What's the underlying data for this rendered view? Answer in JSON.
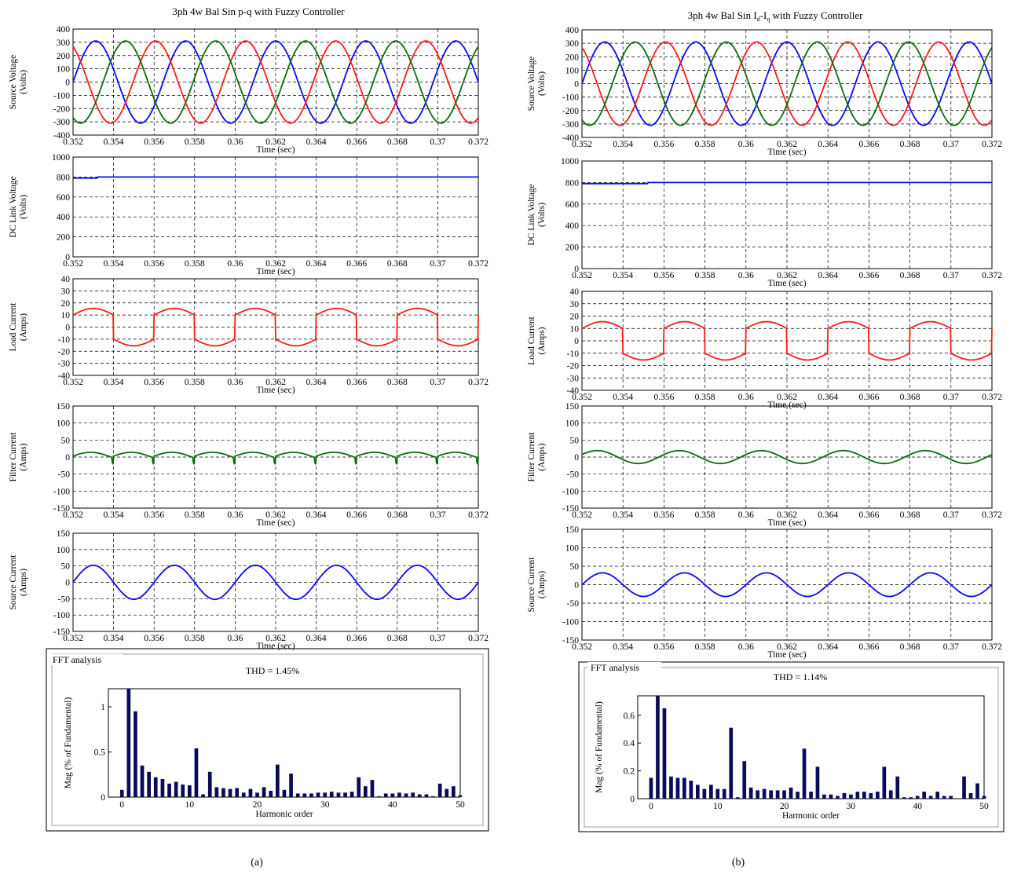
{
  "captions": [
    "(a)",
    "(b)"
  ],
  "colors": {
    "blue": "#0a0aff",
    "red": "#ff1a1a",
    "green": "#0f6a0f",
    "bar": "#0a0a5a",
    "frame": "#000000"
  },
  "panels": [
    {
      "id": "a",
      "title": "3ph 4w Bal Sin p-q with Fuzzy Controller",
      "title_main": "3ph 4w Bal Sin p-q with Fuzzy Controller",
      "title_subs": [],
      "fft": {
        "box_label": "FFT analysis",
        "thd": "THD = 1.45%"
      }
    },
    {
      "id": "b",
      "title": "3ph 4w Bal Sin Id-Iq with Fuzzy Controller",
      "title_main": "3ph 4w Bal Sin I",
      "title_subs": [
        "d",
        "-I",
        "q",
        " with Fuzzy Controller"
      ],
      "fft": {
        "box_label": "FFT analysis",
        "thd": "THD = 1.14%"
      }
    }
  ],
  "chart_data": [
    {
      "type": "line",
      "panel": "a",
      "plot": "source-voltage",
      "xlabel": "Time (sec)",
      "ylabel": [
        "Source Voltage",
        "(Volts)"
      ],
      "xlim": [
        0.352,
        0.372
      ],
      "ylim": [
        -400,
        400
      ],
      "grid": true,
      "xticks": [
        "0.352",
        "0.354",
        "0.356",
        "0.358",
        "0.36",
        "0.362",
        "0.364",
        "0.366",
        "0.368",
        "0.37",
        "0.372"
      ],
      "yticks": [
        "400",
        "300",
        "200",
        "100",
        "0",
        "-100",
        "-200",
        "-300",
        "-400"
      ],
      "signal": {
        "kind": "three_phase_sine",
        "amplitude": 310,
        "frequency_hz": 50,
        "x0": 0.352,
        "phases_deg": [
          0,
          120,
          -120
        ],
        "colors": [
          "blue",
          "red",
          "green"
        ]
      }
    },
    {
      "type": "line",
      "panel": "a",
      "plot": "dc-link-voltage",
      "xlabel": "Time (sec)",
      "ylabel": [
        "DC Link Voltage",
        "(Volts)"
      ],
      "xlim": [
        0.352,
        0.372
      ],
      "ylim": [
        0,
        1000
      ],
      "grid": true,
      "xticks": [
        "0.352",
        "0.354",
        "0.356",
        "0.358",
        "0.36",
        "0.362",
        "0.364",
        "0.366",
        "0.368",
        "0.37",
        "0.372"
      ],
      "yticks": [
        "1000",
        "800",
        "600",
        "400",
        "200",
        "0"
      ],
      "signal": {
        "kind": "dc",
        "steady_value": 800,
        "initial_value": 790,
        "settle_time": 0.3532,
        "colors": [
          "blue"
        ]
      }
    },
    {
      "type": "line",
      "panel": "a",
      "plot": "load-current",
      "xlabel": "Time (sec)",
      "ylabel": [
        "Load Current",
        "(Amps)"
      ],
      "xlim": [
        0.352,
        0.372
      ],
      "ylim": [
        -40,
        40
      ],
      "grid": true,
      "xticks": [
        "0.352",
        "0.354",
        "0.356",
        "0.358",
        "0.36",
        "0.362",
        "0.364",
        "0.366",
        "0.368",
        "0.37",
        "0.372"
      ],
      "yticks": [
        "40",
        "30",
        "20",
        "10",
        "0",
        "-10",
        "-20",
        "-30",
        "-40"
      ],
      "signal": {
        "kind": "rectifier_load",
        "base": 10,
        "hump": 5.5,
        "frequency_hz": 50,
        "phase_deg": 0,
        "colors": [
          "red"
        ]
      }
    },
    {
      "type": "line",
      "panel": "a",
      "plot": "filter-current",
      "xlabel": "Time (sec)",
      "ylabel": [
        "Filter Current",
        "(Amps)"
      ],
      "xlim": [
        0.352,
        0.372
      ],
      "ylim": [
        -150,
        150
      ],
      "grid": true,
      "xticks": [
        "0.352",
        "0.354",
        "0.356",
        "0.358",
        "0.36",
        "0.362",
        "0.364",
        "0.366",
        "0.368",
        "0.37",
        "0.372"
      ],
      "yticks": [
        "150",
        "100",
        "50",
        "0",
        "-50",
        "-100",
        "-150"
      ],
      "signal": {
        "kind": "filter_spiky",
        "amplitude": 14,
        "spike": 24,
        "frequency_hz": 50,
        "colors": [
          "green"
        ]
      }
    },
    {
      "type": "line",
      "panel": "a",
      "plot": "source-current",
      "xlabel": "Time (sec)",
      "ylabel": [
        "Source Current",
        "(Amps)"
      ],
      "xlim": [
        0.352,
        0.372
      ],
      "ylim": [
        -150,
        150
      ],
      "grid": true,
      "xticks": [
        "0.352",
        "0.354",
        "0.356",
        "0.358",
        "0.36",
        "0.362",
        "0.364",
        "0.366",
        "0.368",
        "0.37",
        "0.372"
      ],
      "yticks": [
        "150",
        "100",
        "50",
        "0",
        "-50",
        "-100",
        "-150"
      ],
      "signal": {
        "kind": "sine",
        "amplitude": 52,
        "frequency_hz": 250,
        "x0": 0.352,
        "phase_deg": 0,
        "colors": [
          "blue"
        ]
      }
    },
    {
      "type": "bar",
      "panel": "a",
      "plot": "fft",
      "xlabel": "Harmonic order",
      "ylabel": [
        "Mag (% of Fundamental)"
      ],
      "xlim": [
        -2,
        50
      ],
      "ylim": [
        0,
        1.2
      ],
      "xticks": [
        "0",
        "10",
        "20",
        "30",
        "40",
        "50"
      ],
      "xtick_values": [
        0,
        10,
        20,
        30,
        40,
        50
      ],
      "yticks": [
        "1",
        "0.5",
        "0"
      ],
      "ytick_values": [
        1,
        0.5,
        0
      ],
      "harmonics": [
        0,
        1,
        2,
        3,
        4,
        5,
        6,
        7,
        8,
        9,
        10,
        11,
        12,
        13,
        14,
        15,
        16,
        17,
        18,
        19,
        20,
        21,
        22,
        23,
        24,
        25,
        26,
        27,
        28,
        29,
        30,
        31,
        32,
        33,
        34,
        35,
        36,
        37,
        38,
        39,
        40,
        41,
        42,
        43,
        44,
        45,
        46,
        47,
        48,
        49,
        50
      ],
      "values": [
        0.08,
        1.2,
        0.95,
        0.35,
        0.28,
        0.22,
        0.2,
        0.15,
        0.17,
        0.14,
        0.13,
        0.54,
        0.03,
        0.28,
        0.11,
        0.1,
        0.09,
        0.1,
        0.05,
        0.09,
        0.05,
        0.11,
        0.07,
        0.36,
        0.08,
        0.26,
        0.04,
        0.04,
        0.04,
        0.05,
        0.05,
        0.06,
        0.05,
        0.05,
        0.06,
        0.22,
        0.12,
        0.19,
        0.01,
        0.04,
        0.04,
        0.05,
        0.04,
        0.05,
        0.03,
        0.03,
        0.01,
        0.15,
        0.09,
        0.12,
        0.02
      ]
    },
    {
      "type": "line",
      "panel": "b",
      "plot": "source-voltage",
      "xlabel": "Time (sec)",
      "ylabel": [
        "Source Voltage",
        "(Volts)"
      ],
      "xlim": [
        0.352,
        0.372
      ],
      "ylim": [
        -400,
        400
      ],
      "grid": true,
      "xticks": [
        "0.352",
        "0.354",
        "0.356",
        "0.358",
        "0.36",
        "0.362",
        "0.364",
        "0.366",
        "0.368",
        "0.37",
        "0.372"
      ],
      "yticks": [
        "400",
        "300",
        "200",
        "100",
        "0",
        "-100",
        "-200",
        "-300",
        "-400"
      ],
      "signal": {
        "kind": "three_phase_sine",
        "amplitude": 310,
        "frequency_hz": 50,
        "x0": 0.352,
        "phases_deg": [
          0,
          120,
          -120
        ],
        "colors": [
          "blue",
          "red",
          "green"
        ]
      }
    },
    {
      "type": "line",
      "panel": "b",
      "plot": "dc-link-voltage",
      "xlabel": "Time (sec)",
      "ylabel": [
        "DC Link Voltage",
        "(Volts)"
      ],
      "xlim": [
        0.352,
        0.372
      ],
      "ylim": [
        0,
        1000
      ],
      "grid": true,
      "xticks": [
        "0.352",
        "0.354",
        "0.356",
        "0.358",
        "0.36",
        "0.362",
        "0.364",
        "0.366",
        "0.368",
        "0.37",
        "0.372"
      ],
      "yticks": [
        "1000",
        "800",
        "600",
        "400",
        "200",
        "0"
      ],
      "signal": {
        "kind": "dc",
        "steady_value": 800,
        "initial_value": 790,
        "settle_time": 0.3552,
        "colors": [
          "blue"
        ]
      }
    },
    {
      "type": "line",
      "panel": "b",
      "plot": "load-current",
      "xlabel": "Time (sec)",
      "ylabel": [
        "Load Current",
        "(Amps)"
      ],
      "xlim": [
        0.352,
        0.372
      ],
      "ylim": [
        -40,
        40
      ],
      "grid": true,
      "xticks": [
        "0.352",
        "0.354",
        "0.356",
        "0.358",
        "0.36",
        "0.362",
        "0.364",
        "0.366",
        "0.368",
        "0.37",
        "0.372"
      ],
      "yticks": [
        "40",
        "30",
        "20",
        "10",
        "0",
        "-10",
        "-20",
        "-30",
        "-40"
      ],
      "signal": {
        "kind": "rectifier_load",
        "base": 10,
        "hump": 5.5,
        "frequency_hz": 50,
        "phase_deg": 0,
        "colors": [
          "red"
        ]
      }
    },
    {
      "type": "line",
      "panel": "b",
      "plot": "filter-current",
      "xlabel": "Time (sec)",
      "ylabel": [
        "Filter Current",
        "(Amps)"
      ],
      "xlim": [
        0.352,
        0.372
      ],
      "ylim": [
        -150,
        150
      ],
      "grid": true,
      "xticks": [
        "0.352",
        "0.354",
        "0.356",
        "0.358",
        "0.36",
        "0.362",
        "0.364",
        "0.366",
        "0.368",
        "0.37",
        "0.372"
      ],
      "yticks": [
        "150",
        "100",
        "50",
        "0",
        "-50",
        "-100",
        "-150"
      ],
      "signal": {
        "kind": "filter_smooth",
        "amplitude": 19,
        "frequency_hz": 250,
        "colors": [
          "green"
        ]
      }
    },
    {
      "type": "line",
      "panel": "b",
      "plot": "source-current",
      "xlabel": "Time (sec)",
      "ylabel": [
        "Source Current",
        "(Amps)"
      ],
      "xlim": [
        0.352,
        0.372
      ],
      "ylim": [
        -150,
        150
      ],
      "grid": true,
      "xticks": [
        "0.352",
        "0.354",
        "0.356",
        "0.358",
        "0.36",
        "0.362",
        "0.364",
        "0.366",
        "0.368",
        "0.37",
        "0.372"
      ],
      "yticks": [
        "150",
        "100",
        "50",
        "0",
        "-50",
        "-100",
        "-150"
      ],
      "signal": {
        "kind": "sine",
        "amplitude": 32,
        "frequency_hz": 250,
        "x0": 0.352,
        "phase_deg": 0,
        "colors": [
          "blue"
        ]
      }
    },
    {
      "type": "bar",
      "panel": "b",
      "plot": "fft",
      "xlabel": "Harmonic order",
      "ylabel": [
        "Mag (% of Fundamental)"
      ],
      "xlim": [
        -2,
        50
      ],
      "ylim": [
        0,
        0.74
      ],
      "xticks": [
        "0",
        "10",
        "20",
        "30",
        "40",
        "50"
      ],
      "xtick_values": [
        0,
        10,
        20,
        30,
        40,
        50
      ],
      "yticks": [
        "0.6",
        "0.4",
        "0.2",
        "0"
      ],
      "ytick_values": [
        0.6,
        0.4,
        0.2,
        0
      ],
      "harmonics": [
        0,
        1,
        2,
        3,
        4,
        5,
        6,
        7,
        8,
        9,
        10,
        11,
        12,
        13,
        14,
        15,
        16,
        17,
        18,
        19,
        20,
        21,
        22,
        23,
        24,
        25,
        26,
        27,
        28,
        29,
        30,
        31,
        32,
        33,
        34,
        35,
        36,
        37,
        38,
        39,
        40,
        41,
        42,
        43,
        44,
        45,
        46,
        47,
        48,
        49,
        50
      ],
      "values": [
        0.15,
        0.74,
        0.65,
        0.16,
        0.15,
        0.15,
        0.13,
        0.1,
        0.07,
        0.1,
        0.07,
        0.07,
        0.51,
        0.01,
        0.27,
        0.08,
        0.06,
        0.07,
        0.06,
        0.06,
        0.06,
        0.08,
        0.05,
        0.36,
        0.05,
        0.23,
        0.03,
        0.03,
        0.02,
        0.04,
        0.03,
        0.05,
        0.05,
        0.04,
        0.05,
        0.23,
        0.06,
        0.16,
        0.01,
        0.01,
        0.02,
        0.05,
        0.02,
        0.05,
        0.02,
        0.02,
        0.0,
        0.16,
        0.04,
        0.11,
        0.02
      ]
    }
  ]
}
